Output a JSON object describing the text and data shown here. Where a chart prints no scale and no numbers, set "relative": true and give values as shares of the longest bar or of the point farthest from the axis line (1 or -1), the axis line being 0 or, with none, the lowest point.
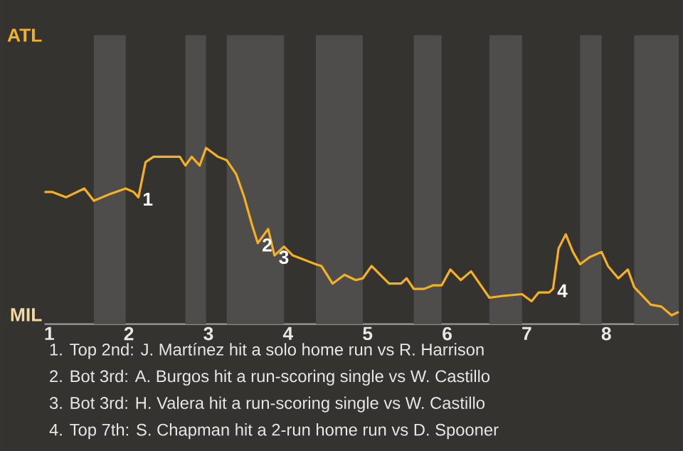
{
  "chart_data": {
    "type": "line",
    "relative": true,
    "x": [
      0.94,
      1.04,
      1.21,
      1.44,
      1.56,
      1.77,
      1.96,
      2.06,
      2.12,
      2.21,
      2.31,
      2.64,
      2.71,
      2.79,
      2.89,
      2.97,
      3.12,
      3.23,
      3.35,
      3.45,
      3.55,
      3.62,
      3.75,
      3.83,
      3.95,
      4.06,
      4.35,
      4.42,
      4.56,
      4.71,
      4.85,
      4.94,
      5.05,
      5.16,
      5.27,
      5.42,
      5.49,
      5.58,
      5.71,
      5.82,
      5.93,
      6.04,
      6.17,
      6.3,
      6.53,
      6.7,
      6.94,
      7.06,
      7.15,
      7.28,
      7.33,
      7.4,
      7.49,
      7.58,
      7.67,
      7.79,
      7.94,
      8.02,
      8.15,
      8.27,
      8.35,
      8.56,
      8.69,
      8.82,
      8.91
    ],
    "series": [
      {
        "color": "#f5b120",
        "values": [
          0.75,
          0.75,
          0.72,
          0.77,
          0.7,
          0.74,
          0.77,
          0.75,
          0.72,
          0.92,
          0.95,
          0.95,
          0.9,
          0.95,
          0.9,
          1,
          0.95,
          0.93,
          0.85,
          0.72,
          0.56,
          0.46,
          0.54,
          0.39,
          0.44,
          0.39,
          0.34,
          0.33,
          0.23,
          0.28,
          0.25,
          0.26,
          0.33,
          0.28,
          0.23,
          0.23,
          0.26,
          0.2,
          0.2,
          0.22,
          0.22,
          0.31,
          0.25,
          0.3,
          0.15,
          0.16,
          0.17,
          0.13,
          0.18,
          0.18,
          0.2,
          0.43,
          0.51,
          0.41,
          0.34,
          0.38,
          0.41,
          0.33,
          0.26,
          0.31,
          0.21,
          0.11,
          0.1,
          0.05,
          0.07
        ]
      }
    ],
    "xlim": [
      0.94,
      8.91
    ],
    "xticks": [
      1,
      2,
      3,
      4,
      5,
      6,
      7,
      8
    ],
    "bands": [
      {
        "axis": "x",
        "from": 1.56,
        "to": 1.96,
        "color": "#4f4d4b"
      },
      {
        "axis": "x",
        "from": 2.71,
        "to": 2.97,
        "color": "#4f4d4b"
      },
      {
        "axis": "x",
        "from": 3.23,
        "to": 3.95,
        "color": "#4f4d4b"
      },
      {
        "axis": "x",
        "from": 4.35,
        "to": 4.94,
        "color": "#4f4d4b"
      },
      {
        "axis": "x",
        "from": 5.58,
        "to": 5.93,
        "color": "#4f4d4b"
      },
      {
        "axis": "x",
        "from": 6.53,
        "to": 6.94,
        "color": "#4f4d4b"
      },
      {
        "axis": "x",
        "from": 7.67,
        "to": 7.94,
        "color": "#4f4d4b"
      },
      {
        "axis": "x",
        "from": 8.35,
        "to": 8.91,
        "color": "#4f4d4b"
      }
    ],
    "annotations": [
      "ATL",
      "MIL",
      {
        "text": "1",
        "x": 2.12,
        "y": 0.72
      },
      {
        "text": "2",
        "x": 3.62,
        "y": 0.46
      },
      {
        "text": "3",
        "x": 3.83,
        "y": 0.39
      },
      {
        "text": "4",
        "x": 7.33,
        "y": 0.2
      },
      "1. Top 2nd: J. Martínez hit a solo home run vs R. Harrison",
      "2. Bot 3rd: A. Burgos hit a run-scoring single vs W. Castillo",
      "3. Bot 3rd: H. Valera hit a run-scoring single vs W. Castillo",
      "4. Top 7th: S. Chapman hit a 2-run home run vs D. Spooner"
    ]
  }
}
